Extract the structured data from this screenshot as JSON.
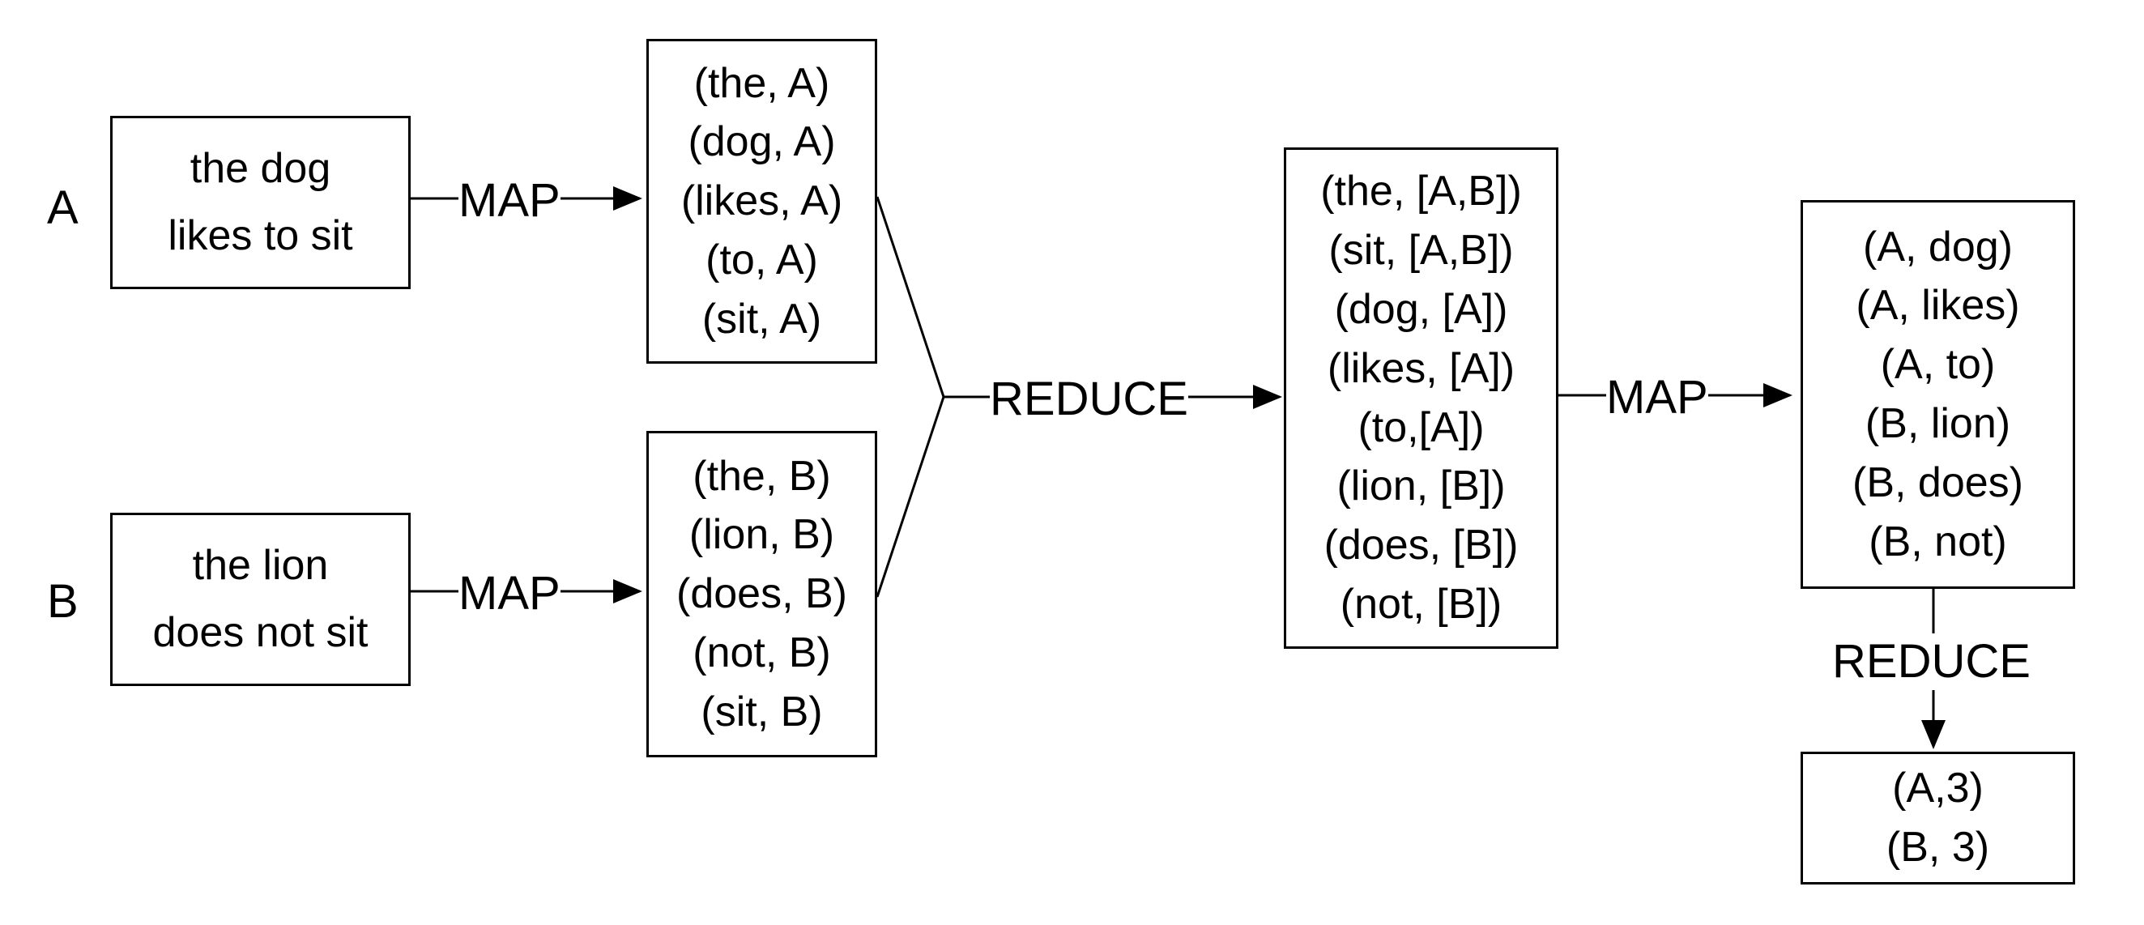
{
  "documents": [
    {
      "id": "A",
      "lines": [
        "the dog",
        "likes to sit"
      ]
    },
    {
      "id": "B",
      "lines": [
        "the lion",
        "does not sit"
      ]
    }
  ],
  "map1": {
    "label": "MAP",
    "outputs": [
      [
        "(the, A)",
        "(dog, A)",
        "(likes, A)",
        "(to, A)",
        "(sit, A)"
      ],
      [
        "(the, B)",
        "(lion, B)",
        "(does, B)",
        "(not, B)",
        "(sit, B)"
      ]
    ]
  },
  "reduce1": {
    "label": "REDUCE",
    "output": [
      "(the, [A,B])",
      "(sit, [A,B])",
      "(dog, [A])",
      "(likes, [A])",
      "(to,[A])",
      "(lion, [B])",
      "(does, [B])",
      "(not, [B])"
    ]
  },
  "map2": {
    "label": "MAP",
    "output": [
      "(A, dog)",
      "(A, likes)",
      "(A, to)",
      "(B, lion)",
      "(B, does)",
      "(B, not)"
    ]
  },
  "reduce2": {
    "label": "REDUCE",
    "output": [
      "(A,3)",
      "(B, 3)"
    ]
  }
}
